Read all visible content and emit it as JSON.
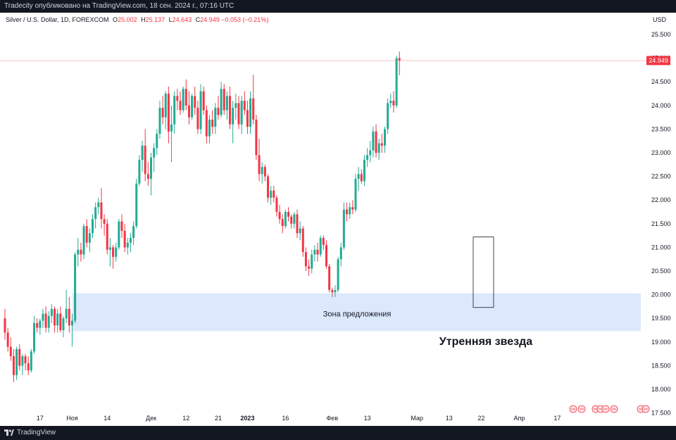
{
  "publisher_line": "Tradecity опубликовано на TradingView.com, 18 сен. 2024 г., 07:16 UTC",
  "brand": "TradingView",
  "legend": {
    "symbol": "Silver / U.S. Dollar, 1D, FOREXCOM",
    "o_label": "O",
    "o_value": "25.002",
    "h_label": "H",
    "h_value": "25.137",
    "l_label": "L",
    "l_value": "24.643",
    "c_label": "C",
    "c_value": "24.949",
    "change": "−0.053 (−0.21%)"
  },
  "currency": "USD",
  "colors": {
    "up": "#22ab94",
    "down": "#f23645",
    "zone": "#d6e4fb",
    "bg": "#ffffff",
    "dark": "#131722"
  },
  "chart_data": {
    "type": "candlestick",
    "symbol": "Silver / U.S. Dollar",
    "timeframe": "1D",
    "ylim": [
      17.5,
      25.75
    ],
    "y_ticks": [
      "17.500",
      "18.000",
      "18.500",
      "19.000",
      "19.500",
      "20.000",
      "20.500",
      "21.000",
      "21.500",
      "22.000",
      "22.500",
      "23.000",
      "23.500",
      "24.000",
      "24.500",
      "25.000",
      "25.500"
    ],
    "x_ticks": [
      {
        "i": 12,
        "label": "17"
      },
      {
        "i": 23,
        "label": "Ноя"
      },
      {
        "i": 35,
        "label": "14"
      },
      {
        "i": 50,
        "label": "Дек"
      },
      {
        "i": 62,
        "label": "12"
      },
      {
        "i": 73,
        "label": "21"
      },
      {
        "i": 83,
        "label": "2023",
        "bold": true
      },
      {
        "i": 96,
        "label": "16"
      },
      {
        "i": 112,
        "label": "Фев"
      },
      {
        "i": 124,
        "label": "13"
      },
      {
        "i": 141,
        "label": "Мар"
      },
      {
        "i": 152,
        "label": "13"
      },
      {
        "i": 163,
        "label": "22"
      },
      {
        "i": 176,
        "label": "Апр"
      },
      {
        "i": 189,
        "label": "17"
      }
    ],
    "last_price": 24.949,
    "last_price_label": "24.949",
    "candles": [
      [
        19.5,
        19.7,
        19.05,
        19.2
      ],
      [
        19.2,
        19.3,
        18.8,
        18.9
      ],
      [
        18.9,
        19.1,
        18.6,
        18.7
      ],
      [
        18.7,
        18.85,
        18.15,
        18.3
      ],
      [
        18.3,
        18.9,
        18.2,
        18.85
      ],
      [
        18.85,
        18.95,
        18.4,
        18.5
      ],
      [
        18.5,
        18.75,
        18.3,
        18.7
      ],
      [
        18.7,
        18.75,
        18.4,
        18.55
      ],
      [
        18.55,
        18.7,
        18.3,
        18.4
      ],
      [
        18.4,
        18.85,
        18.35,
        18.8
      ],
      [
        18.8,
        19.55,
        18.75,
        19.4
      ],
      [
        19.4,
        19.5,
        19.2,
        19.3
      ],
      [
        19.3,
        19.5,
        19.15,
        19.45
      ],
      [
        19.45,
        19.7,
        19.3,
        19.6
      ],
      [
        19.6,
        19.75,
        19.2,
        19.3
      ],
      [
        19.3,
        19.65,
        19.2,
        19.55
      ],
      [
        19.55,
        19.8,
        19.4,
        19.7
      ],
      [
        19.7,
        19.75,
        19.2,
        19.35
      ],
      [
        19.35,
        19.7,
        19.2,
        19.6
      ],
      [
        19.6,
        19.75,
        19.2,
        19.25
      ],
      [
        19.25,
        19.55,
        19.1,
        19.5
      ],
      [
        19.5,
        20.1,
        19.4,
        19.7
      ],
      [
        19.7,
        19.95,
        19.2,
        19.35
      ],
      [
        19.35,
        19.6,
        18.9,
        19.45
      ],
      [
        19.45,
        20.9,
        19.4,
        20.85
      ],
      [
        20.85,
        21.2,
        20.6,
        20.95
      ],
      [
        20.95,
        21.1,
        20.7,
        20.85
      ],
      [
        20.85,
        21.5,
        20.75,
        21.45
      ],
      [
        21.45,
        21.6,
        21.0,
        21.1
      ],
      [
        21.1,
        21.4,
        20.9,
        21.3
      ],
      [
        21.3,
        21.7,
        21.2,
        21.6
      ],
      [
        21.6,
        21.95,
        21.4,
        21.85
      ],
      [
        21.85,
        22.05,
        21.7,
        21.95
      ],
      [
        21.95,
        22.25,
        21.4,
        21.6
      ],
      [
        21.6,
        21.7,
        21.25,
        21.5
      ],
      [
        21.5,
        21.6,
        20.85,
        20.95
      ],
      [
        20.95,
        21.2,
        20.6,
        21.0
      ],
      [
        21.0,
        21.05,
        20.55,
        20.8
      ],
      [
        20.8,
        21.1,
        20.7,
        21.0
      ],
      [
        21.0,
        21.6,
        20.95,
        21.55
      ],
      [
        21.55,
        21.7,
        21.2,
        21.35
      ],
      [
        21.35,
        21.5,
        20.9,
        21.0
      ],
      [
        21.0,
        21.2,
        20.85,
        21.1
      ],
      [
        21.1,
        21.3,
        20.9,
        21.2
      ],
      [
        21.2,
        21.55,
        21.05,
        21.45
      ],
      [
        21.45,
        22.45,
        21.4,
        22.35
      ],
      [
        22.35,
        22.95,
        22.3,
        22.85
      ],
      [
        22.85,
        23.25,
        22.6,
        23.15
      ],
      [
        23.15,
        23.5,
        22.4,
        22.55
      ],
      [
        22.55,
        22.8,
        22.3,
        22.45
      ],
      [
        22.45,
        23.0,
        22.1,
        22.9
      ],
      [
        22.9,
        23.2,
        22.6,
        23.1
      ],
      [
        23.1,
        23.5,
        22.95,
        23.4
      ],
      [
        23.4,
        24.1,
        23.3,
        23.95
      ],
      [
        23.95,
        24.2,
        23.6,
        23.75
      ],
      [
        23.75,
        24.3,
        23.5,
        24.25
      ],
      [
        24.25,
        24.4,
        23.2,
        23.45
      ],
      [
        23.45,
        24.0,
        22.8,
        23.6
      ],
      [
        23.6,
        24.3,
        23.4,
        24.2
      ],
      [
        24.2,
        24.35,
        23.9,
        24.1
      ],
      [
        24.1,
        24.3,
        23.8,
        23.9
      ],
      [
        23.9,
        24.4,
        23.85,
        24.35
      ],
      [
        24.35,
        24.55,
        23.9,
        24.0
      ],
      [
        24.0,
        24.3,
        23.6,
        23.75
      ],
      [
        23.75,
        24.25,
        23.7,
        24.2
      ],
      [
        24.2,
        24.4,
        23.8,
        23.95
      ],
      [
        23.95,
        24.1,
        23.4,
        23.5
      ],
      [
        23.5,
        24.45,
        23.4,
        24.3
      ],
      [
        24.3,
        24.4,
        23.8,
        23.9
      ],
      [
        23.9,
        24.0,
        23.2,
        23.35
      ],
      [
        23.35,
        23.8,
        23.2,
        23.7
      ],
      [
        23.7,
        23.9,
        23.4,
        23.55
      ],
      [
        23.55,
        24.05,
        23.4,
        23.95
      ],
      [
        23.95,
        24.2,
        23.7,
        23.8
      ],
      [
        23.8,
        24.5,
        23.75,
        24.35
      ],
      [
        24.35,
        24.45,
        23.8,
        23.9
      ],
      [
        23.9,
        24.3,
        23.7,
        24.2
      ],
      [
        24.2,
        24.4,
        23.5,
        23.6
      ],
      [
        23.6,
        24.1,
        23.2,
        23.95
      ],
      [
        23.95,
        24.25,
        23.7,
        24.05
      ],
      [
        24.05,
        24.2,
        23.5,
        23.6
      ],
      [
        23.6,
        24.2,
        23.4,
        24.1
      ],
      [
        24.1,
        24.3,
        23.8,
        23.9
      ],
      [
        23.9,
        24.1,
        23.4,
        23.55
      ],
      [
        23.55,
        24.3,
        23.4,
        24.15
      ],
      [
        24.15,
        24.65,
        23.6,
        23.7
      ],
      [
        23.7,
        23.8,
        22.85,
        22.95
      ],
      [
        22.95,
        23.3,
        22.4,
        22.55
      ],
      [
        22.55,
        22.8,
        22.35,
        22.7
      ],
      [
        22.7,
        22.75,
        22.4,
        22.5
      ],
      [
        22.5,
        22.55,
        21.95,
        22.05
      ],
      [
        22.05,
        22.3,
        21.9,
        22.2
      ],
      [
        22.2,
        22.3,
        21.95,
        22.05
      ],
      [
        22.05,
        22.1,
        21.65,
        21.75
      ],
      [
        21.75,
        21.9,
        21.5,
        21.6
      ]
    ]
  }
}
